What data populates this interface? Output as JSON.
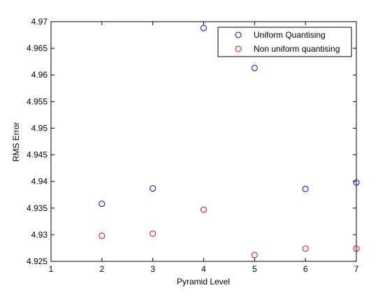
{
  "chart_data": {
    "type": "scatter",
    "title": "",
    "xlabel": "Pyramid Level",
    "ylabel": "RMS Error",
    "xlim": [
      1,
      7
    ],
    "ylim": [
      4.925,
      4.97
    ],
    "xticks": [
      "1",
      "2",
      "3",
      "4",
      "5",
      "6",
      "7"
    ],
    "yticks": [
      "4.925",
      "4.93",
      "4.935",
      "4.94",
      "4.945",
      "4.95",
      "4.955",
      "4.96",
      "4.965",
      "4.97"
    ],
    "grid": false,
    "legend_position": "top-right",
    "series": [
      {
        "name": "Uniform Quantising",
        "color": "#0000ff",
        "marker": "circle",
        "x": [
          2,
          3,
          4,
          5,
          6,
          7
        ],
        "y": [
          4.9358,
          4.9387,
          4.9688,
          4.9613,
          4.9386,
          4.9398
        ]
      },
      {
        "name": "Non uniform quantising",
        "color": "#ff0000",
        "marker": "circle",
        "x": [
          2,
          3,
          4,
          5,
          6,
          7
        ],
        "y": [
          4.9298,
          4.9302,
          4.9347,
          4.9262,
          4.9274,
          4.9274
        ]
      }
    ]
  }
}
